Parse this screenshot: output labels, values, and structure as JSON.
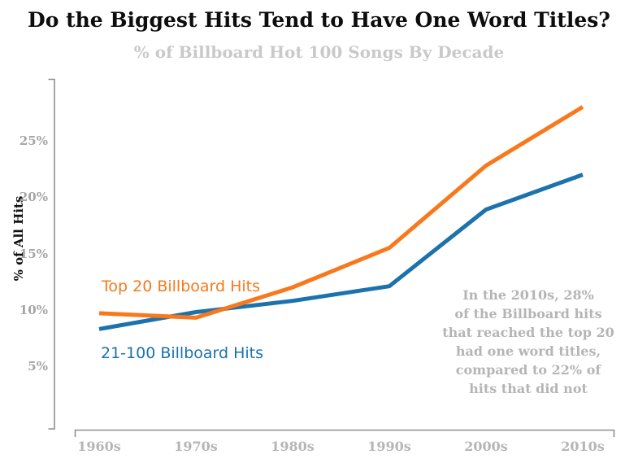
{
  "header": {
    "title": "Do the Biggest Hits Tend to Have One Word Titles?",
    "subtitle": "% of Billboard Hot 100 Songs By Decade"
  },
  "chart_data": {
    "type": "line",
    "title": "Do the Biggest Hits Tend to Have One Word Titles?",
    "subtitle": "% of Billboard Hot 100 Songs By Decade",
    "categories": [
      "1960s",
      "1970s",
      "1980s",
      "1990s",
      "2000s",
      "2010s"
    ],
    "series": [
      {
        "name": "Top 20 Billboard Hits",
        "color": "#f8781b",
        "values": [
          9.7,
          9.3,
          12.0,
          15.5,
          22.8,
          28.0
        ]
      },
      {
        "name": "21-100 Billboard Hits",
        "color": "#1b72ad",
        "values": [
          8.3,
          9.8,
          10.8,
          12.1,
          18.9,
          22.0
        ]
      }
    ],
    "xlabel": "",
    "ylabel": "% of All Hits",
    "yticks": [
      5,
      10,
      15,
      20,
      25
    ],
    "ytick_suffix": "%",
    "ylim": [
      0,
      30.5
    ],
    "grid": false,
    "legend_position": "inline-labels-near-lines",
    "annotation": {
      "lines": [
        "In the 2010s, 28%",
        "of the Billboard hits",
        "that reached the top 20",
        "had one word titles,",
        "compared to 22% of",
        "hits that did not"
      ]
    }
  },
  "colors": {
    "top20_line": "#f8781b",
    "hits21_100_line": "#1b72ad",
    "axis": "#8f8f8f",
    "title_text": "#0d0d0d",
    "subtitle_text": "#c9c9c9",
    "tick_text": "#a5a5a5",
    "annotation_text": "#b5b5b5"
  }
}
